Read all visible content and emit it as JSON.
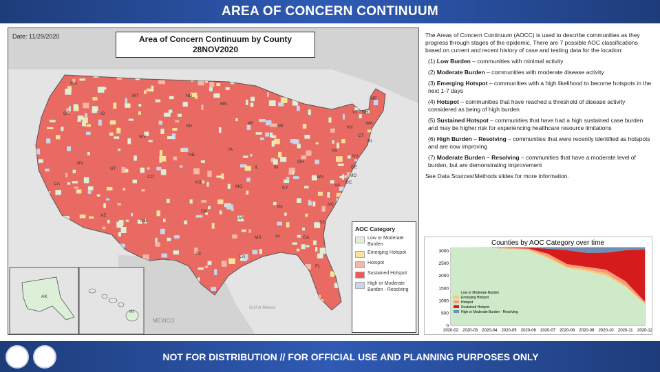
{
  "header": {
    "title": "AREA OF CONCERN CONTINUUM"
  },
  "map": {
    "date_label": "Date: 11/29/2020",
    "title_line1": "Area of Concern Continuum by County",
    "title_line2": "28NOV2020",
    "country_label": "MEXICO",
    "gulf_label": "Gulf of Mexico",
    "state_labels": [
      "WA",
      "OR",
      "CA",
      "NV",
      "ID",
      "MT",
      "WY",
      "UT",
      "CO",
      "AZ",
      "NM",
      "ND",
      "SD",
      "NE",
      "KS",
      "OK",
      "TX",
      "MN",
      "IA",
      "MO",
      "AR",
      "LA",
      "WI",
      "IL",
      "MI",
      "IN",
      "OH",
      "KY",
      "TN",
      "MS",
      "AL",
      "GA",
      "FL",
      "SC",
      "NC",
      "VA",
      "WV",
      "PA",
      "NY",
      "VT",
      "NH",
      "ME",
      "MA",
      "CT",
      "RI",
      "NJ",
      "DE",
      "MD",
      "DC",
      "AK",
      "HI"
    ],
    "colors": {
      "low": "#dcefd7",
      "emerging": "#fbe29a",
      "hotspot": "#f5b8a6",
      "sustained": "#ee5a5a",
      "resolving": "#c7d6ec",
      "land": "#d6d6d6",
      "water": "#e4e4e4"
    }
  },
  "legend": {
    "title": "AOC Category",
    "items": [
      {
        "label": "Low or Moderate Burden",
        "color": "#dcefd7"
      },
      {
        "label": "Emerging Hotspot",
        "color": "#fbe29a"
      },
      {
        "label": "Hotspot",
        "color": "#f5b8a6"
      },
      {
        "label": "Sustained Hotspot",
        "color": "#ee5a5a"
      },
      {
        "label": "High or Moderate Burden - Resolving",
        "color": "#c7d6ec"
      }
    ]
  },
  "description": {
    "intro": "The Areas of Concern Continuum (AOCC) is used to describe communities as they progress through stages of the epidemic. There are 7 possible AOC classifications based on current and recent history of case and testing data for the location:",
    "items": [
      {
        "num": "(1)",
        "term": "Low Burden",
        "text": " – communities with minimal activity"
      },
      {
        "num": "(2)",
        "term": "Moderate Burden",
        "text": " – communities with moderate disease activity"
      },
      {
        "num": "(3)",
        "term": "Emerging Hotspot",
        "text": " – communities with a high likelihood to become hotspots in the next 1-7 days"
      },
      {
        "num": "(4)",
        "term": "Hotspot",
        "text": " – communities that have reached a threshold of disease activity considered as being of high burden"
      },
      {
        "num": "(5)",
        "term": "Sustained Hotspot",
        "text": " – communities that have had a high sustained case burden and may be higher risk for experiencing healthcare resource limitations"
      },
      {
        "num": "(6)",
        "term": "High Burden – Resolving",
        "text": " – communities that were recently identified as hotspots and are now improving"
      },
      {
        "num": "(7)",
        "term": "Moderate Burden – Resolving",
        "text": " – communities that have a moderate level of burden, but are demonstrating improvement"
      }
    ],
    "footer_note": "See Data Sources/Methods slides for more information."
  },
  "chart_data": {
    "type": "area",
    "stacked": true,
    "title": "Counties by AOC Category over time",
    "x": [
      "2020-02",
      "2020-03",
      "2020-04",
      "2020-05",
      "2020-06",
      "2020-07",
      "2020-08",
      "2020-09",
      "2020-10",
      "2020-11",
      "2020-12"
    ],
    "ylim": [
      0,
      3100
    ],
    "yticks": [
      0,
      500,
      1000,
      1500,
      2000,
      2500,
      3000
    ],
    "legend_position": "bottom-left",
    "series": [
      {
        "name": "Low or Moderate Burden",
        "color": "#cfeac8",
        "values": [
          3140,
          3140,
          3120,
          3070,
          3010,
          2700,
          2300,
          2180,
          2000,
          1550,
          850
        ]
      },
      {
        "name": "Emerging Hotspot",
        "color": "#f7c970",
        "values": [
          0,
          0,
          10,
          20,
          40,
          60,
          60,
          70,
          90,
          60,
          40
        ]
      },
      {
        "name": "Hotspot",
        "color": "#f59a7a",
        "values": [
          0,
          0,
          5,
          20,
          40,
          120,
          100,
          100,
          150,
          160,
          60
        ]
      },
      {
        "name": "Sustained Hotspot",
        "color": "#d51b1b",
        "values": [
          0,
          0,
          0,
          10,
          30,
          200,
          560,
          560,
          680,
          1250,
          2100
        ]
      },
      {
        "name": "High or Moderate Burden - Resolving",
        "color": "#6f8fb3",
        "values": [
          0,
          0,
          5,
          20,
          20,
          60,
          120,
          230,
          220,
          120,
          90
        ]
      }
    ]
  },
  "footer": {
    "text": "NOT FOR DISTRIBUTION // FOR OFFICIAL USE AND PLANNING PURPOSES ONLY"
  }
}
